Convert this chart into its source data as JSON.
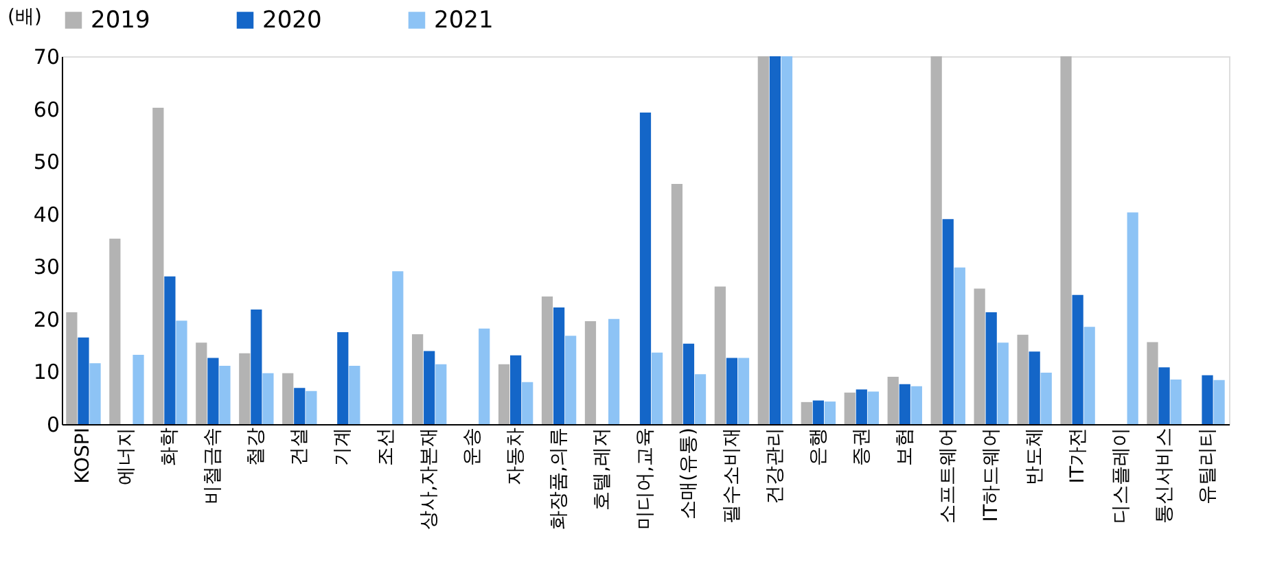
{
  "chart_data": {
    "type": "bar",
    "ylabel": "(배)",
    "categories": [
      "KOSPI",
      "에너지",
      "화학",
      "비철금속",
      "철강",
      "건설",
      "기계",
      "조선",
      "상사,자본재",
      "운송",
      "자동차",
      "화장품,의류",
      "호텔,레저",
      "미디어,교육",
      "소매(유통)",
      "필수소비재",
      "건강관리",
      "은행",
      "증권",
      "보험",
      "소프트웨어",
      "IT하드웨어",
      "반도체",
      "IT가전",
      "디스플레이",
      "통신서비스",
      "유틸리티"
    ],
    "series": [
      {
        "name": "2019",
        "color": "#b3b3b3",
        "values": [
          21.3,
          35.3,
          60.2,
          15.5,
          13.5,
          9.7,
          null,
          null,
          17.1,
          null,
          11.4,
          24.3,
          19.6,
          null,
          45.7,
          26.2,
          70,
          4.2,
          6.0,
          9.0,
          70,
          25.8,
          17.0,
          70,
          null,
          15.6,
          null
        ]
      },
      {
        "name": "2020",
        "color": "#1466c8",
        "values": [
          16.5,
          null,
          28.1,
          12.6,
          21.8,
          6.9,
          17.5,
          null,
          13.9,
          null,
          13.1,
          22.2,
          null,
          59.3,
          15.3,
          12.6,
          70,
          4.5,
          6.6,
          7.6,
          39.0,
          21.3,
          13.8,
          24.6,
          null,
          10.8,
          9.3
        ]
      },
      {
        "name": "2021",
        "color": "#8dc3f5",
        "values": [
          11.6,
          13.2,
          19.7,
          11.1,
          9.7,
          6.3,
          11.1,
          29.1,
          11.4,
          18.2,
          8.0,
          16.8,
          20.0,
          13.6,
          9.5,
          12.6,
          70,
          4.3,
          6.2,
          7.2,
          29.8,
          15.5,
          9.8,
          18.5,
          40.3,
          8.5,
          8.4
        ]
      }
    ],
    "ylim": [
      0,
      70
    ],
    "yticks": [
      0,
      10,
      20,
      30,
      40,
      50,
      60,
      70
    ],
    "grid": false,
    "legend": "top"
  }
}
